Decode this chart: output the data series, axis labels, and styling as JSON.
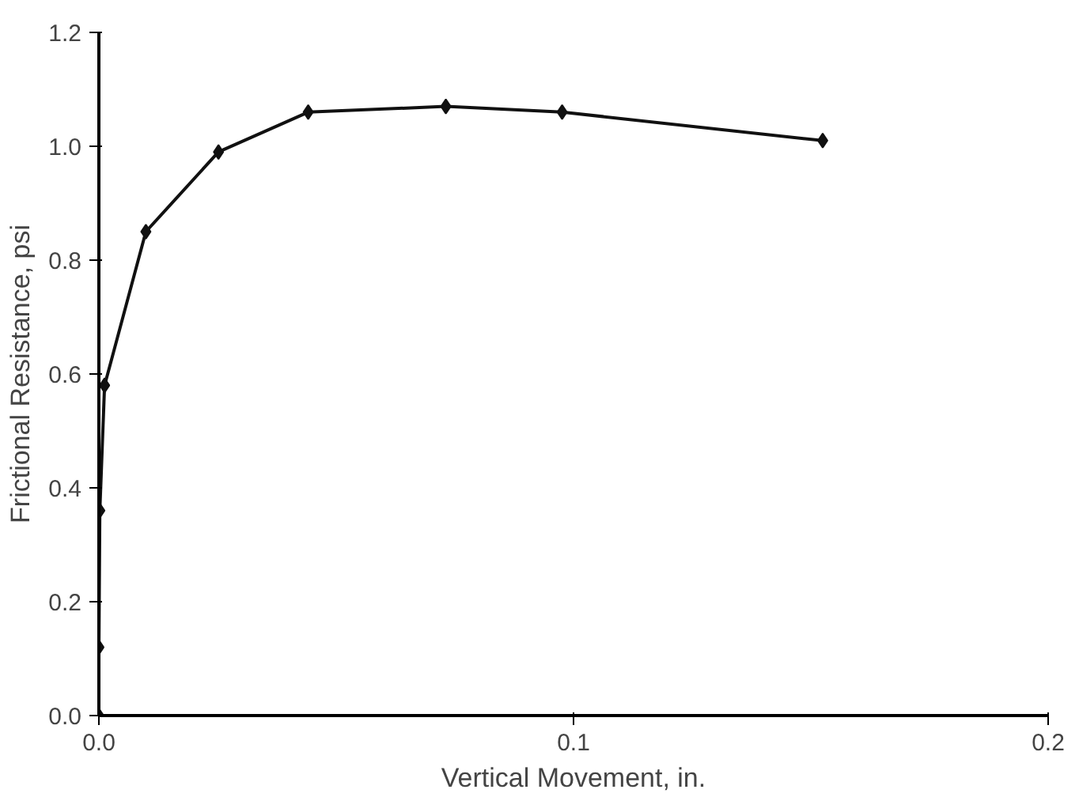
{
  "chart_data": {
    "type": "line",
    "xlabel": "Vertical Movement, in.",
    "ylabel": "Frictional Resistance, psi",
    "x": [
      0,
      0,
      0.0002,
      0.0012,
      0.0099,
      0.0252,
      0.0441,
      0.0731,
      0.0976,
      0.1525
    ],
    "series": [
      {
        "color": "#111111",
        "values": [
          0,
          0.12,
          0.36,
          0.58,
          0.85,
          0.99,
          1.06,
          1.07,
          1.06,
          1.01
        ]
      }
    ],
    "xlim": [
      0,
      0.2
    ],
    "ylim": [
      0,
      1.2
    ],
    "xticks": [
      {
        "value": 0,
        "label": "0.0"
      },
      0.1,
      0.2
    ],
    "yticks": [
      {
        "value": 0,
        "label": "0.0"
      },
      0.2,
      0.4,
      0.6,
      0.8,
      {
        "value": 1,
        "label": "1.0"
      },
      1.2
    ],
    "grid": false,
    "marker": "diamond",
    "line_style": "solid"
  }
}
